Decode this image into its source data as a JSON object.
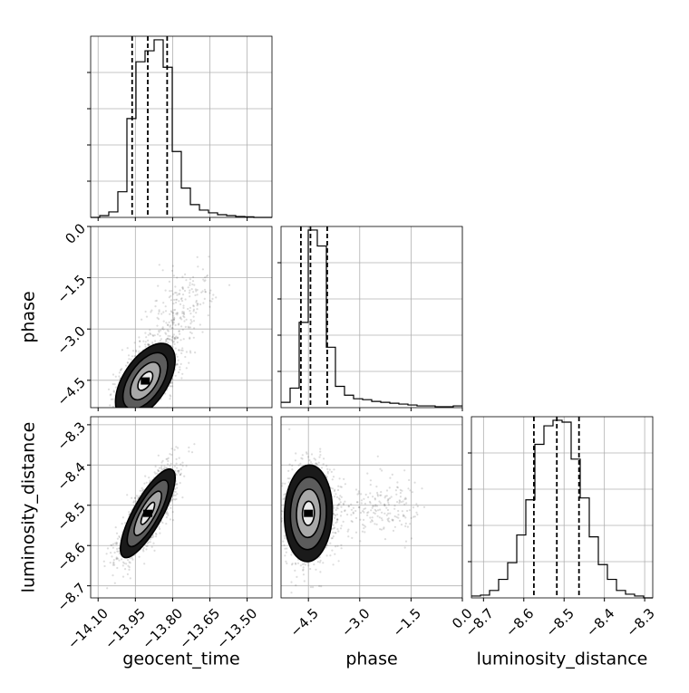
{
  "chart_data": {
    "type": "corner",
    "parameters": [
      "geocent_time",
      "phase",
      "luminosity_distance"
    ],
    "axes": {
      "geocent_time": {
        "label": "geocent_time",
        "range": [
          -14.13,
          -13.4
        ],
        "ticks": [
          -14.1,
          -13.95,
          -13.8,
          -13.65,
          -13.5
        ],
        "tick_labels": [
          "−14.10",
          "−13.95",
          "−13.80",
          "−13.65",
          "−13.50"
        ]
      },
      "phase": {
        "label": "phase",
        "range": [
          -5.3,
          0.0
        ],
        "ticks": [
          -4.5,
          -3.0,
          -1.5,
          0.0
        ],
        "tick_labels": [
          "−4.5",
          "−3.0",
          "−1.5",
          "0.0"
        ]
      },
      "luminosity_distance": {
        "label": "luminosity_distance",
        "range": [
          -8.73,
          -8.28
        ],
        "ticks": [
          -8.7,
          -8.6,
          -8.5,
          -8.4,
          -8.3
        ],
        "tick_labels": [
          "−8.7",
          "−8.6",
          "−8.5",
          "−8.4",
          "−8.3"
        ]
      }
    },
    "histograms": {
      "geocent_time": {
        "bin_edges": [
          -14.13,
          -14.0935,
          -14.057,
          -14.0205,
          -13.984,
          -13.9475,
          -13.911,
          -13.8745,
          -13.838,
          -13.8015,
          -13.765,
          -13.7285,
          -13.692,
          -13.6555,
          -13.619,
          -13.5825,
          -13.546,
          -13.5095,
          -13.473,
          -13.4365,
          -13.4
        ],
        "counts": [
          0,
          1,
          3,
          14,
          54,
          85,
          91,
          97,
          82,
          36,
          16,
          7,
          4,
          2.5,
          1.5,
          1,
          0.5,
          0.3,
          0,
          0
        ],
        "quantiles": [
          -13.963,
          -13.9,
          -13.822
        ]
      },
      "phase": {
        "bin_edges": [
          -5.3,
          -5.035,
          -4.77,
          -4.505,
          -4.24,
          -3.975,
          -3.71,
          -3.445,
          -3.18,
          -2.915,
          -2.65,
          -2.385,
          -2.12,
          -1.855,
          -1.59,
          -1.325,
          -1.06,
          -0.795,
          -0.53,
          -0.265,
          0.0
        ],
        "counts": [
          3,
          11,
          48,
          100,
          91,
          34,
          12,
          7,
          5,
          4.5,
          3.5,
          3,
          2.5,
          2,
          1.5,
          1,
          1,
          0.5,
          0.5,
          1
        ],
        "quantiles": [
          -4.72,
          -4.44,
          -3.95
        ]
      },
      "luminosity_distance": {
        "bin_edges": [
          -8.73,
          -8.7075,
          -8.685,
          -8.6625,
          -8.64,
          -8.6175,
          -8.595,
          -8.5725,
          -8.55,
          -8.5275,
          -8.505,
          -8.4825,
          -8.46,
          -8.4375,
          -8.415,
          -8.3925,
          -8.37,
          -8.3475,
          -8.325,
          -8.3025,
          -8.28
        ],
        "counts": [
          1,
          1.5,
          4,
          10,
          19,
          34,
          53,
          83,
          93,
          96,
          95,
          75,
          54,
          33,
          18,
          10,
          4,
          2,
          1,
          0
        ],
        "quantiles": [
          -8.575,
          -8.518,
          -8.463
        ]
      }
    },
    "pairs": [
      {
        "x": "geocent_time",
        "y": "phase",
        "center": [
          -13.91,
          -4.52
        ],
        "spread": [
          0.06,
          0.55
        ],
        "correlation": 0.55,
        "contour_levels_sigma": [
          0.5,
          1.0,
          1.5,
          2.0
        ],
        "tail_toward": [
          -13.7,
          -1.5
        ]
      },
      {
        "x": "geocent_time",
        "y": "luminosity_distance",
        "center": [
          -13.9,
          -8.52
        ],
        "spread": [
          0.055,
          0.055
        ],
        "correlation": 0.8,
        "contour_levels_sigma": [
          0.5,
          1.0,
          1.5,
          2.0
        ],
        "tail_toward": null
      },
      {
        "x": "phase",
        "y": "luminosity_distance",
        "center": [
          -4.5,
          -8.52
        ],
        "spread": [
          0.35,
          0.06
        ],
        "correlation": 0.05,
        "contour_levels_sigma": [
          0.5,
          1.0,
          1.5,
          2.0
        ],
        "tail_toward": [
          -1.5,
          -8.5
        ]
      }
    ],
    "grid": true,
    "colors": {
      "line": "#000000",
      "grid": "#b0b0b0",
      "points": "#444444"
    }
  }
}
